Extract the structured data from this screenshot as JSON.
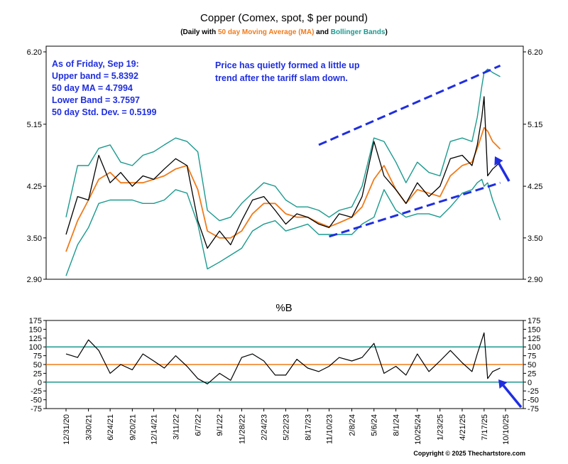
{
  "chart_data": [
    {
      "type": "line",
      "title": "Copper (Comex, spot, $ per pound)",
      "subtitle": {
        "prefix": "(Daily with ",
        "ma_text": "50 day Moving Average (MA)",
        "middle": " and ",
        "bb_text": "Bollinger Bands",
        "suffix": ")"
      },
      "colors": {
        "price": "#000000",
        "ma": "#f07b1a",
        "bands": "#1b9a8f",
        "trend": "#1f2ee0",
        "annotation": "#1f2ee0"
      },
      "y_ticks": [
        "6.20",
        "5.15",
        "4.25",
        "3.50",
        "2.90"
      ],
      "y_tick_values": [
        6.2,
        5.15,
        4.25,
        3.5,
        2.9
      ],
      "ylim": [
        2.9,
        6.2
      ],
      "x_ticks": [
        "12/31/20",
        "3/30/21",
        "6/24/21",
        "9/20/21",
        "12/14/21",
        "3/11/22",
        "6/7/22",
        "9/1/22",
        "11/28/22",
        "2/24/23",
        "5/22/23",
        "8/17/23",
        "11/10/23",
        "2/8/24",
        "5/6/24",
        "8/1/24",
        "10/25/24",
        "1/23/25",
        "4/21/25",
        "7/17/25",
        "10/10/25"
      ],
      "x": [
        "2020-12-31",
        "2021-02-15",
        "2021-03-30",
        "2021-05-10",
        "2021-06-24",
        "2021-08-05",
        "2021-09-20",
        "2021-11-01",
        "2021-12-14",
        "2022-01-25",
        "2022-03-11",
        "2022-04-25",
        "2022-06-07",
        "2022-07-15",
        "2022-09-01",
        "2022-10-15",
        "2022-11-28",
        "2023-01-10",
        "2023-02-24",
        "2023-04-10",
        "2023-05-22",
        "2023-07-05",
        "2023-08-17",
        "2023-09-30",
        "2023-11-10",
        "2023-12-20",
        "2024-02-08",
        "2024-03-20",
        "2024-05-06",
        "2024-06-15",
        "2024-08-01",
        "2024-09-10",
        "2024-10-25",
        "2024-12-10",
        "2025-01-23",
        "2025-03-05",
        "2025-04-21",
        "2025-05-30",
        "2025-06-20",
        "2025-07-08",
        "2025-07-17",
        "2025-07-31",
        "2025-08-20",
        "2025-09-19"
      ],
      "series": [
        {
          "key": "price",
          "values": [
            3.55,
            4.1,
            4.05,
            4.7,
            4.3,
            4.45,
            4.25,
            4.4,
            4.35,
            4.5,
            4.65,
            4.55,
            3.75,
            3.35,
            3.6,
            3.4,
            3.75,
            4.05,
            4.1,
            3.9,
            3.7,
            3.85,
            3.8,
            3.7,
            3.65,
            3.85,
            3.8,
            4.1,
            4.9,
            4.4,
            4.2,
            4.0,
            4.3,
            4.1,
            4.25,
            4.65,
            4.7,
            4.55,
            4.85,
            5.25,
            5.55,
            4.4,
            4.5,
            4.6
          ]
        },
        {
          "key": "ma",
          "name": "50 day Moving Average (MA)",
          "values": [
            3.3,
            3.75,
            4.05,
            4.35,
            4.45,
            4.3,
            4.3,
            4.3,
            4.35,
            4.4,
            4.5,
            4.55,
            4.2,
            3.6,
            3.5,
            3.5,
            3.6,
            3.85,
            4.0,
            4.0,
            3.85,
            3.8,
            3.8,
            3.72,
            3.66,
            3.72,
            3.8,
            3.95,
            4.35,
            4.55,
            4.2,
            4.0,
            4.2,
            4.15,
            4.1,
            4.4,
            4.55,
            4.6,
            4.8,
            5.0,
            5.1,
            5.05,
            4.9,
            4.79
          ]
        },
        {
          "key": "upper",
          "name": "Upper band",
          "values": [
            3.8,
            4.55,
            4.55,
            4.8,
            4.85,
            4.6,
            4.55,
            4.7,
            4.75,
            4.85,
            4.95,
            4.9,
            4.75,
            3.9,
            3.75,
            3.8,
            4.0,
            4.15,
            4.3,
            4.25,
            4.05,
            3.95,
            3.95,
            3.9,
            3.8,
            3.9,
            3.95,
            4.25,
            4.95,
            4.9,
            4.6,
            4.3,
            4.6,
            4.45,
            4.4,
            4.9,
            4.95,
            4.9,
            5.25,
            5.7,
            5.9,
            5.95,
            5.9,
            5.84
          ]
        },
        {
          "key": "lower",
          "name": "Lower band",
          "values": [
            2.95,
            3.4,
            3.65,
            4.0,
            4.05,
            4.05,
            4.05,
            4.0,
            4.0,
            4.05,
            4.2,
            4.15,
            3.7,
            3.05,
            3.15,
            3.25,
            3.35,
            3.6,
            3.7,
            3.75,
            3.6,
            3.65,
            3.7,
            3.55,
            3.55,
            3.55,
            3.55,
            3.7,
            3.8,
            4.2,
            3.9,
            3.8,
            3.85,
            3.85,
            3.8,
            3.95,
            4.15,
            4.2,
            4.3,
            4.35,
            4.25,
            4.3,
            4.05,
            3.76
          ]
        }
      ],
      "annotations": {
        "stats": [
          "As of Friday, Sep 19:",
          "Upper band = 5.8392",
          "50 day MA = 4.7994",
          "Lower Band = 3.7597",
          "50 day Std. Dev. = 0.5199"
        ],
        "note": [
          "Price has quietly formed a little up",
          "trend after the tariff slam down."
        ]
      },
      "trend_lines": [
        {
          "x": [
            "2023-09-30",
            "2025-09-19"
          ],
          "y": [
            4.85,
            6.0
          ]
        },
        {
          "x": [
            "2023-11-10",
            "2025-09-19"
          ],
          "y": [
            3.52,
            4.3
          ]
        }
      ]
    },
    {
      "type": "line",
      "title": "%B",
      "y_ticks": [
        "175",
        "150",
        "125",
        "100",
        "75",
        "50",
        "25",
        "0",
        "-25",
        "-50",
        "-75"
      ],
      "y_tick_values": [
        175,
        150,
        125,
        100,
        75,
        50,
        25,
        0,
        -25,
        -50,
        -75
      ],
      "ylim": [
        -75,
        175
      ],
      "reference_lines": {
        "teal": [
          100,
          0
        ],
        "orange": [
          50
        ]
      },
      "series": [
        {
          "key": "pctb",
          "values": [
            80,
            70,
            120,
            90,
            25,
            50,
            35,
            80,
            60,
            40,
            75,
            45,
            10,
            -5,
            25,
            5,
            70,
            80,
            60,
            20,
            20,
            65,
            40,
            30,
            45,
            70,
            60,
            70,
            110,
            25,
            45,
            20,
            80,
            30,
            60,
            90,
            55,
            30,
            80,
            120,
            140,
            10,
            30,
            40
          ]
        }
      ]
    }
  ],
  "copyright": "Copyright © 2025 Thechartstore.com"
}
